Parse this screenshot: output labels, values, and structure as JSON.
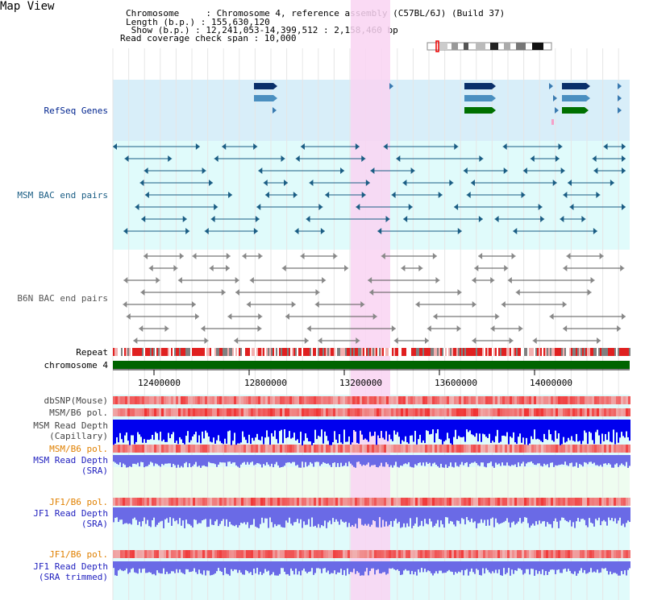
{
  "page": {
    "title": "Map View"
  },
  "info": {
    "chromosome_line": "Chromosome     : Chromosome 4, reference assembly (C57BL/6J) (Build 37)",
    "length_line": "Length (b.p.) : 155,630,120",
    "show_line": " Show (b.p.) : 12,241,053-14,399,512 : 2,158,460 bp",
    "coverage_line": "Read coverage check span : 10,000"
  },
  "tracks": {
    "refseq": "RefSeq Genes",
    "msm_bac": "MSM BAC end pairs",
    "b6n_bac": "B6N BAC end pairs",
    "repeat": "Repeat",
    "chromosome": "chromosome 4",
    "dbsnp": "dbSNP(Mouse)",
    "msm_b6_pol": "MSM/B6 pol.",
    "msm_depth_cap_1": "MSM Read Depth",
    "msm_depth_cap_2": "(Capillary)",
    "msm_b6_pol_orange": "MSM/B6 pol.",
    "msm_depth_sra_1": "MSM Read Depth",
    "msm_depth_sra_2": "(SRA)",
    "jf1_b6_pol_1": "JF1/B6 pol.",
    "jf1_depth_sra_1": "JF1 Read Depth",
    "jf1_depth_sra_2": "(SRA)",
    "jf1_b6_pol_2": "JF1/B6 pol.",
    "jf1_depth_trim_1": "JF1 Read Depth",
    "jf1_depth_trim_2": "(SRA trimmed)"
  },
  "axis": {
    "ticks": [
      "12400000",
      "12800000",
      "13200000",
      "13600000",
      "14000000"
    ]
  },
  "colors": {
    "refseq_bg": "#d8eef9",
    "bac_bg": "#e0fbfb",
    "highlight": "#f9d4f2",
    "chrom_bar": "#006400",
    "msm_bac_line": "#1a5d84",
    "b6n_line": "#555555",
    "depth_blue": "#0000ee",
    "depth_light": "#6a6ae6"
  }
}
